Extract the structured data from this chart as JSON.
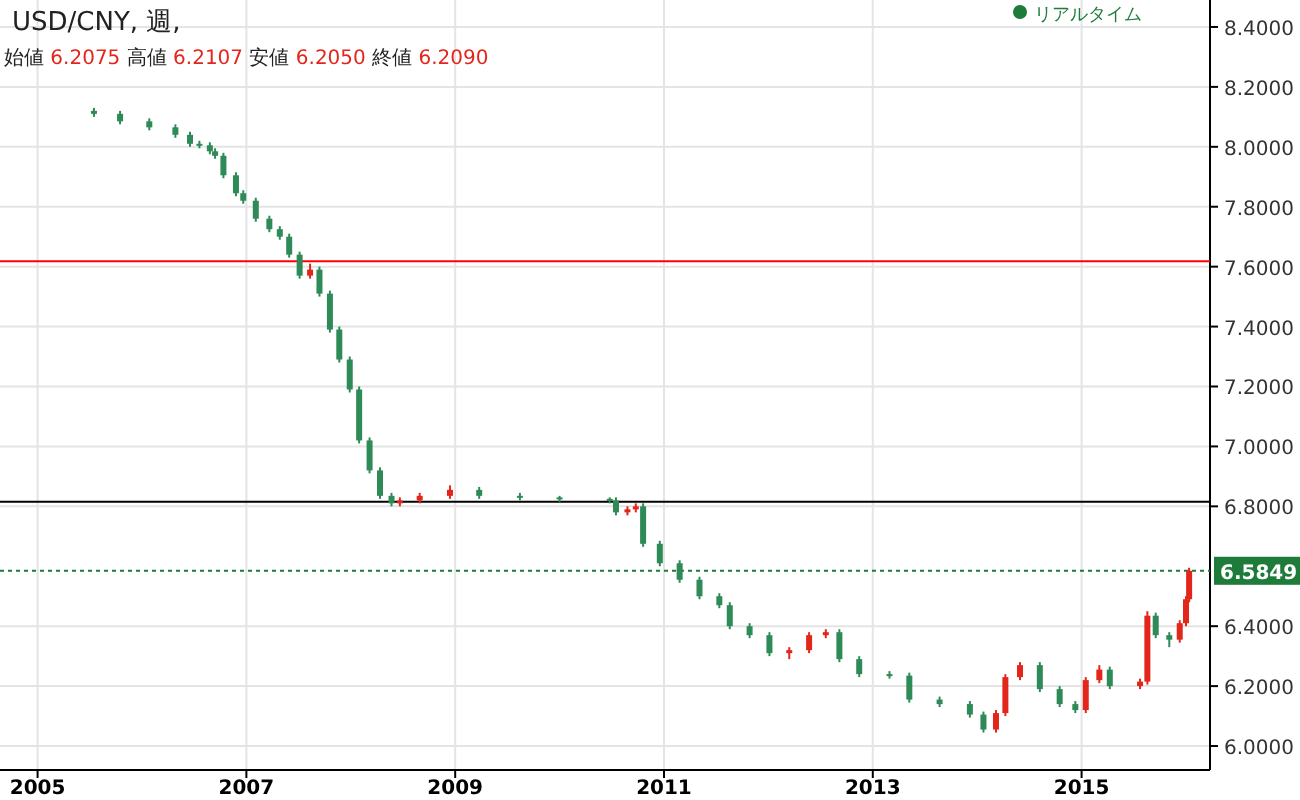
{
  "chart_data": {
    "type": "candlestick",
    "title": "USD/CNY, 週,",
    "subtitle": "始値 6.2075 高値 6.2107 安値 6.2050 終値 6.2090",
    "annotations": [
      "リアルタイム"
    ],
    "x": [
      2005.54,
      2005.79,
      2006.07,
      2006.32,
      2006.46,
      2006.55,
      2006.65,
      2006.7,
      2006.78,
      2006.9,
      2006.97,
      2007.09,
      2007.22,
      2007.32,
      2007.41,
      2007.51,
      2007.61,
      2007.7,
      2007.8,
      2007.89,
      2007.99,
      2008.08,
      2008.18,
      2008.28,
      2008.39,
      2008.47,
      2008.66,
      2008.95,
      2009.23,
      2009.62,
      2010.0,
      2010.48,
      2010.54,
      2010.65,
      2010.73,
      2010.8,
      2010.96,
      2011.15,
      2011.34,
      2011.53,
      2011.63,
      2011.82,
      2012.01,
      2012.2,
      2012.39,
      2012.55,
      2012.68,
      2012.87,
      2013.16,
      2013.35,
      2013.64,
      2013.93,
      2014.06,
      2014.18,
      2014.27,
      2014.41,
      2014.6,
      2014.79,
      2014.94,
      2015.04,
      2015.17,
      2015.27,
      2015.56,
      2015.63,
      2015.71,
      2015.84,
      2015.94,
      2016.0,
      2016.03
    ],
    "ohlc": [
      [
        8.12,
        8.13,
        8.1,
        8.11
      ],
      [
        8.11,
        8.12,
        8.075,
        8.085
      ],
      [
        8.085,
        8.095,
        8.055,
        8.065
      ],
      [
        8.065,
        8.075,
        8.03,
        8.04
      ],
      [
        8.04,
        8.05,
        8.0,
        8.01
      ],
      [
        8.01,
        8.02,
        7.995,
        8.005
      ],
      [
        8.005,
        8.015,
        7.975,
        7.985
      ],
      [
        7.985,
        7.995,
        7.96,
        7.97
      ],
      [
        7.97,
        7.98,
        7.895,
        7.905
      ],
      [
        7.905,
        7.915,
        7.835,
        7.845
      ],
      [
        7.845,
        7.855,
        7.81,
        7.82
      ],
      [
        7.82,
        7.83,
        7.75,
        7.76
      ],
      [
        7.76,
        7.77,
        7.715,
        7.725
      ],
      [
        7.725,
        7.735,
        7.69,
        7.7
      ],
      [
        7.7,
        7.71,
        7.63,
        7.64
      ],
      [
        7.64,
        7.65,
        7.56,
        7.57
      ],
      [
        7.57,
        7.61,
        7.56,
        7.59
      ],
      [
        7.59,
        7.6,
        7.5,
        7.51
      ],
      [
        7.51,
        7.52,
        7.38,
        7.39
      ],
      [
        7.39,
        7.4,
        7.28,
        7.29
      ],
      [
        7.29,
        7.3,
        7.18,
        7.19
      ],
      [
        7.19,
        7.2,
        7.01,
        7.02
      ],
      [
        7.02,
        7.03,
        6.91,
        6.92
      ],
      [
        6.92,
        6.93,
        6.825,
        6.835
      ],
      [
        6.835,
        6.845,
        6.8,
        6.81
      ],
      [
        6.81,
        6.83,
        6.8,
        6.82
      ],
      [
        6.82,
        6.845,
        6.81,
        6.835
      ],
      [
        6.835,
        6.87,
        6.825,
        6.855
      ],
      [
        6.855,
        6.865,
        6.825,
        6.835
      ],
      [
        6.835,
        6.845,
        6.82,
        6.83
      ],
      [
        6.83,
        6.835,
        6.815,
        6.825
      ],
      [
        6.825,
        6.83,
        6.81,
        6.82
      ],
      [
        6.82,
        6.83,
        6.77,
        6.78
      ],
      [
        6.78,
        6.8,
        6.77,
        6.79
      ],
      [
        6.79,
        6.81,
        6.78,
        6.8
      ],
      [
        6.8,
        6.81,
        6.665,
        6.675
      ],
      [
        6.675,
        6.685,
        6.6,
        6.61
      ],
      [
        6.61,
        6.62,
        6.545,
        6.555
      ],
      [
        6.555,
        6.565,
        6.49,
        6.5
      ],
      [
        6.5,
        6.51,
        6.46,
        6.47
      ],
      [
        6.47,
        6.48,
        6.39,
        6.4
      ],
      [
        6.4,
        6.41,
        6.36,
        6.37
      ],
      [
        6.37,
        6.38,
        6.3,
        6.31
      ],
      [
        6.31,
        6.33,
        6.29,
        6.32
      ],
      [
        6.32,
        6.38,
        6.31,
        6.37
      ],
      [
        6.37,
        6.39,
        6.36,
        6.38
      ],
      [
        6.38,
        6.39,
        6.28,
        6.29
      ],
      [
        6.29,
        6.3,
        6.23,
        6.24
      ],
      [
        6.24,
        6.25,
        6.225,
        6.235
      ],
      [
        6.235,
        6.245,
        6.145,
        6.155
      ],
      [
        6.155,
        6.165,
        6.13,
        6.14
      ],
      [
        6.14,
        6.15,
        6.095,
        6.105
      ],
      [
        6.105,
        6.115,
        6.045,
        6.055
      ],
      [
        6.055,
        6.12,
        6.045,
        6.11
      ],
      [
        6.11,
        6.24,
        6.1,
        6.23
      ],
      [
        6.23,
        6.28,
        6.22,
        6.27
      ],
      [
        6.27,
        6.28,
        6.18,
        6.19
      ],
      [
        6.19,
        6.2,
        6.13,
        6.14
      ],
      [
        6.14,
        6.15,
        6.11,
        6.12
      ],
      [
        6.12,
        6.23,
        6.11,
        6.22
      ],
      [
        6.22,
        6.27,
        6.21,
        6.255
      ],
      [
        6.255,
        6.265,
        6.19,
        6.2
      ],
      [
        6.2,
        6.225,
        6.19,
        6.215
      ],
      [
        6.215,
        6.45,
        6.205,
        6.435
      ],
      [
        6.435,
        6.445,
        6.36,
        6.37
      ],
      [
        6.37,
        6.38,
        6.33,
        6.355
      ],
      [
        6.355,
        6.42,
        6.345,
        6.41
      ],
      [
        6.41,
        6.5,
        6.4,
        6.49
      ],
      [
        6.49,
        6.595,
        6.48,
        6.5849
      ]
    ],
    "colors": [
      "#2e8b57",
      "#2e8b57",
      "#2e8b57",
      "#2e8b57",
      "#2e8b57",
      "#2e8b57",
      "#2e8b57",
      "#2e8b57",
      "#2e8b57",
      "#2e8b57",
      "#2e8b57",
      "#2e8b57",
      "#2e8b57",
      "#2e8b57",
      "#2e8b57",
      "#2e8b57",
      "#e3261c",
      "#2e8b57",
      "#2e8b57",
      "#2e8b57",
      "#2e8b57",
      "#2e8b57",
      "#2e8b57",
      "#2e8b57",
      "#2e8b57",
      "#e3261c",
      "#e3261c",
      "#e3261c",
      "#2e8b57",
      "#2e8b57",
      "#2e8b57",
      "#2e8b57",
      "#2e8b57",
      "#e3261c",
      "#e3261c",
      "#2e8b57",
      "#2e8b57",
      "#2e8b57",
      "#2e8b57",
      "#2e8b57",
      "#2e8b57",
      "#2e8b57",
      "#2e8b57",
      "#e3261c",
      "#e3261c",
      "#e3261c",
      "#2e8b57",
      "#2e8b57",
      "#2e8b57",
      "#2e8b57",
      "#2e8b57",
      "#2e8b57",
      "#2e8b57",
      "#e3261c",
      "#e3261c",
      "#e3261c",
      "#2e8b57",
      "#2e8b57",
      "#2e8b57",
      "#e3261c",
      "#e3261c",
      "#2e8b57",
      "#e3261c",
      "#e3261c",
      "#2e8b57",
      "#2e8b57",
      "#e3261c",
      "#e3261c",
      "#e3261c"
    ],
    "xlim": [
      2004.64,
      2016.23
    ],
    "xticks": [
      2005,
      2007,
      2009,
      2011,
      2013,
      2015
    ],
    "ylim": [
      5.92,
      8.49
    ],
    "yticks": [
      {
        "value": 6,
        "label": "6.0000"
      },
      {
        "value": 6.2,
        "label": "6.2000"
      },
      {
        "value": 6.4,
        "label": "6.4000"
      },
      {
        "value": 6.8,
        "label": "6.8000"
      },
      {
        "value": 7,
        "label": "7.0000"
      },
      {
        "value": 7.2,
        "label": "7.2000"
      },
      {
        "value": 7.4,
        "label": "7.4000"
      },
      {
        "value": 7.6,
        "label": "7.6000"
      },
      {
        "value": 7.8,
        "label": "7.8000"
      },
      {
        "value": 8,
        "label": "8.0000"
      },
      {
        "value": 8.2,
        "label": "8.2000"
      },
      {
        "value": 8.4,
        "label": "8.4000"
      }
    ],
    "ref_lines": [
      {
        "axis": "y",
        "value": 7.618,
        "color": "#ff0000"
      },
      {
        "axis": "y",
        "value": 6.815,
        "color": "#000000"
      },
      {
        "axis": "y",
        "value": 6.5849,
        "label": "6.5849",
        "color": "#1e7b3a",
        "line_style": "dotted"
      }
    ],
    "grid": true
  }
}
